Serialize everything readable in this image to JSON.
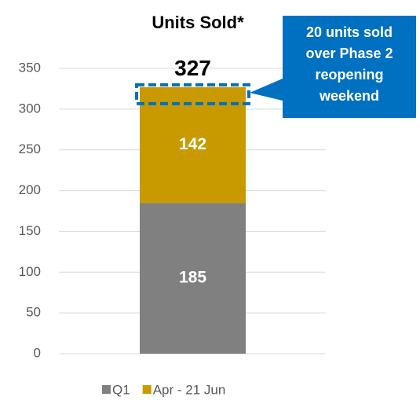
{
  "chart_data": {
    "type": "stacked_bar",
    "title": "Units Sold*",
    "categories": [
      null
    ],
    "series": [
      {
        "name": "Q1",
        "color": "#808080",
        "values": [
          185
        ]
      },
      {
        "name": "Apr - 21 Jun",
        "color": "#c99a00",
        "values": [
          142
        ]
      }
    ],
    "total": 327,
    "annotation": [
      "20 units sold",
      "over Phase 2",
      "reopening",
      "weekend"
    ],
    "annotation_color": "#0070c0",
    "ylim": [
      0,
      350
    ],
    "yticks": [
      0,
      50,
      100,
      150,
      200,
      250,
      300,
      350
    ],
    "grid": true,
    "legend": "bottom"
  }
}
